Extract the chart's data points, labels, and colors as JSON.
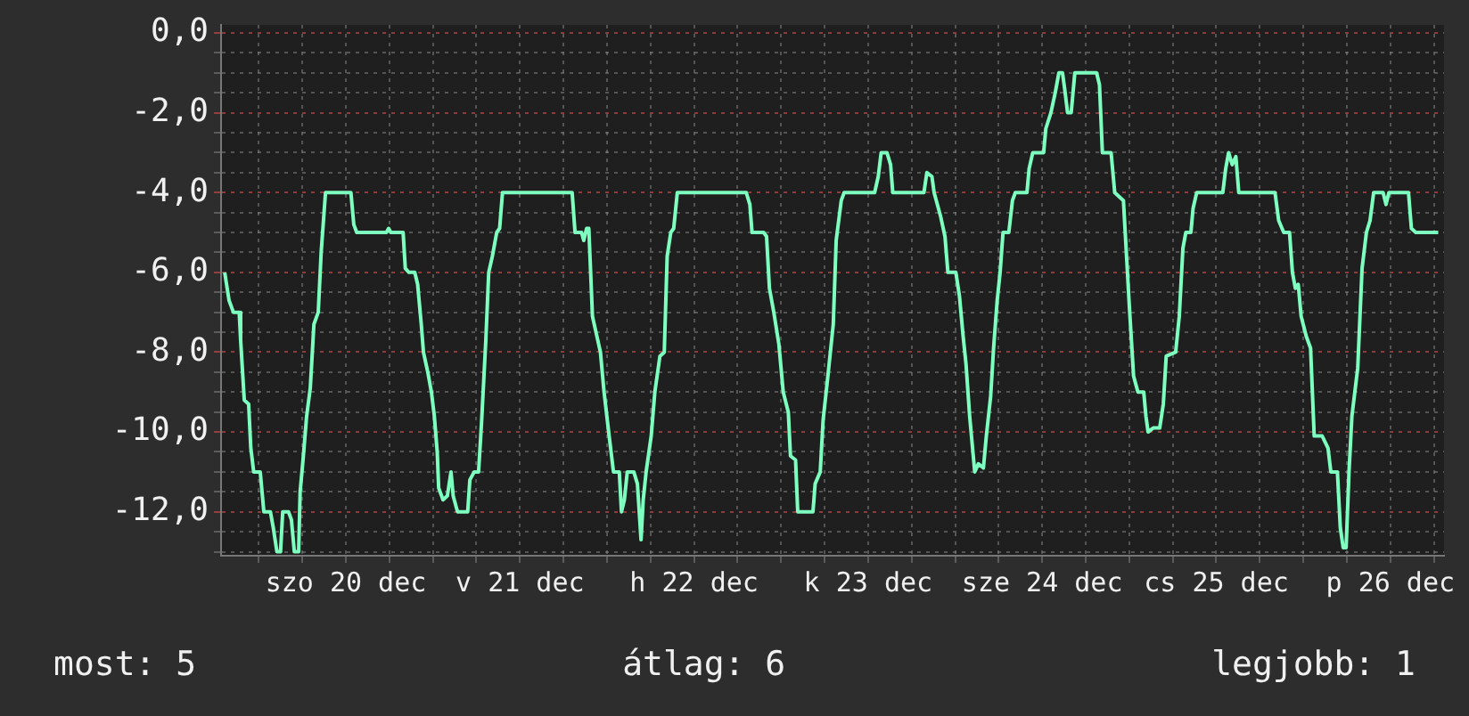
{
  "chart_data": {
    "type": "line",
    "color": "#7dffc0",
    "marker": "none",
    "line_style": "solid",
    "grid": true,
    "x": [
      "--12-19T19:18",
      "--12-19T19:54",
      "--12-19T20:30",
      "--12-19T21:18",
      "--12-19T21:30",
      "--12-19T22:00",
      "--12-19T22:36",
      "--12-19T22:54",
      "--12-19T23:18",
      "--12-20T00:12",
      "--12-20T00:42",
      "--12-20T01:36",
      "--12-20T02:00",
      "--12-20T02:30",
      "--12-20T03:00",
      "--12-20T03:18",
      "--12-20T04:06",
      "--12-20T04:30",
      "--12-20T04:54",
      "--12-20T05:30",
      "--12-20T05:42",
      "--12-20T06:06",
      "--12-20T06:36",
      "--12-20T07:06",
      "--12-20T07:36",
      "--12-20T08:12",
      "--12-20T08:36",
      "--12-20T09:12",
      "--12-20T12:42",
      "--12-20T13:06",
      "--12-20T13:30",
      "--12-20T17:36",
      "--12-20T17:54",
      "--12-20T18:12",
      "--12-20T19:54",
      "--12-20T20:12",
      "--12-20T20:42",
      "--12-20T21:30",
      "--12-20T21:54",
      "--12-20T22:24",
      "--12-20T22:42",
      "--12-20T23:18",
      "--12-20T23:48",
      "--12-21T00:12",
      "--12-21T00:36",
      "--12-21T00:48",
      "--12-21T01:24",
      "--12-21T02:00",
      "--12-21T02:30",
      "--12-21T02:48",
      "--12-21T03:24",
      "--12-21T04:48",
      "--12-21T05:06",
      "--12-21T05:42",
      "--12-21T06:18",
      "--12-21T06:42",
      "--12-21T07:18",
      "--12-21T07:42",
      "--12-21T08:12",
      "--12-21T08:48",
      "--12-21T09:12",
      "--12-21T09:36",
      "--12-21T19:12",
      "--12-21T19:36",
      "--12-21T20:30",
      "--12-21T20:48",
      "--12-21T21:12",
      "--12-21T21:30",
      "--12-21T22:00",
      "--12-21T23:06",
      "--12-21T23:36",
      "--12-22T00:18",
      "--12-22T00:54",
      "--12-22T01:42",
      "--12-22T02:00",
      "--12-22T02:24",
      "--12-22T02:48",
      "--12-22T03:42",
      "--12-22T04:12",
      "--12-22T04:42",
      "--12-22T05:00",
      "--12-22T05:24",
      "--12-22T06:06",
      "--12-22T06:36",
      "--12-22T07:18",
      "--12-22T07:54",
      "--12-22T08:18",
      "--12-22T08:48",
      "--12-22T09:12",
      "--12-22T09:42",
      "--12-22T19:12",
      "--12-22T19:42",
      "--12-22T20:00",
      "--12-22T21:36",
      "--12-22T22:00",
      "--12-22T22:24",
      "--12-22T23:00",
      "--12-22T23:42",
      "--12-23T00:18",
      "--12-23T01:00",
      "--12-23T01:18",
      "--12-23T02:00",
      "--12-23T02:18",
      "--12-23T04:24",
      "--12-23T04:42",
      "--12-23T05:24",
      "--12-23T05:48",
      "--12-23T06:24",
      "--12-23T07:12",
      "--12-23T07:36",
      "--12-23T08:18",
      "--12-23T08:42",
      "--12-23T12:54",
      "--12-23T13:24",
      "--12-23T13:48",
      "--12-23T14:36",
      "--12-23T15:06",
      "--12-23T15:24",
      "--12-23T19:42",
      "--12-23T20:06",
      "--12-23T20:48",
      "--12-23T21:06",
      "--12-23T22:00",
      "--12-23T22:36",
      "--12-23T23:00",
      "--12-24T00:06",
      "--12-24T00:36",
      "--12-24T01:06",
      "--12-24T01:30",
      "--12-24T02:00",
      "--12-24T02:42",
      "--12-24T03:12",
      "--12-24T03:54",
      "--12-24T04:18",
      "--12-24T04:54",
      "--12-24T05:18",
      "--12-24T05:48",
      "--12-24T06:12",
      "--12-24T06:36",
      "--12-24T07:24",
      "--12-24T07:54",
      "--12-24T08:18",
      "--12-24T09:54",
      "--12-24T10:12",
      "--12-24T10:42",
      "--12-24T12:12",
      "--12-24T12:30",
      "--12-24T13:12",
      "--12-24T13:48",
      "--12-24T14:18",
      "--12-24T14:48",
      "--12-24T15:06",
      "--12-24T15:30",
      "--12-24T16:00",
      "--12-24T16:30",
      "--12-24T19:30",
      "--12-24T19:54",
      "--12-24T20:18",
      "--12-24T21:30",
      "--12-24T22:00",
      "--12-24T23:12",
      "--12-24T23:36",
      "--12-25T00:00",
      "--12-25T00:36",
      "--12-25T01:12",
      "--12-25T02:00",
      "--12-25T02:18",
      "--12-25T02:36",
      "--12-25T03:18",
      "--12-25T04:12",
      "--12-25T04:42",
      "--12-25T05:06",
      "--12-25T06:24",
      "--12-25T06:54",
      "--12-25T07:24",
      "--12-25T07:48",
      "--12-25T08:30",
      "--12-25T08:48",
      "--12-25T09:18",
      "--12-25T12:54",
      "--12-25T13:18",
      "--12-25T13:42",
      "--12-25T14:12",
      "--12-25T14:42",
      "--12-25T15:06",
      "--12-25T20:06",
      "--12-25T20:36",
      "--12-25T21:18",
      "--12-25T22:06",
      "--12-25T22:30",
      "--12-25T22:54",
      "--12-25T23:18",
      "--12-25T23:42",
      "--12-26T00:24",
      "--12-26T01:00",
      "--12-26T01:30",
      "--12-26T02:36",
      "--12-26T03:24",
      "--12-26T03:48",
      "--12-26T04:42",
      "--12-26T05:06",
      "--12-26T05:30",
      "--12-26T05:54",
      "--12-26T06:18",
      "--12-26T06:42",
      "--12-26T07:30",
      "--12-26T08:06",
      "--12-26T08:42",
      "--12-26T09:12",
      "--12-26T09:42",
      "--12-26T11:00",
      "--12-26T11:24",
      "--12-26T11:48",
      "--12-26T14:30",
      "--12-26T14:54",
      "--12-26T15:30",
      "--12-26T18:36"
    ],
    "values": [
      -6,
      -6.7,
      -7,
      -7,
      -7.7,
      -9.2,
      -9.3,
      -10.4,
      -11,
      -11,
      -12,
      -12,
      -12.4,
      -13,
      -13,
      -12,
      -12,
      -12.2,
      -13,
      -13,
      -11.5,
      -10.7,
      -9.6,
      -8.9,
      -7.3,
      -7,
      -5.5,
      -4,
      -4,
      -4.8,
      -5,
      -5,
      -4.9,
      -5,
      -5,
      -5.9,
      -6,
      -6,
      -6.3,
      -7.3,
      -8,
      -8.5,
      -9,
      -9.6,
      -10.5,
      -11.4,
      -11.7,
      -11.6,
      -11,
      -11.6,
      -12,
      -12,
      -11.2,
      -11,
      -11,
      -9.8,
      -7.7,
      -6,
      -5.6,
      -5,
      -4.9,
      -4,
      -4,
      -5,
      -5,
      -5.2,
      -4.9,
      -4.9,
      -7.1,
      -8,
      -9,
      -10.1,
      -11,
      -11,
      -12,
      -11.7,
      -11,
      -11,
      -11.3,
      -12.7,
      -11.7,
      -11,
      -10.1,
      -9,
      -8.1,
      -8,
      -5.6,
      -5,
      -4.9,
      -4,
      -4,
      -4.3,
      -5,
      -5,
      -5.1,
      -6.4,
      -7,
      -7.8,
      -9,
      -9.5,
      -10.6,
      -10.7,
      -12,
      -12,
      -11.3,
      -11,
      -9.7,
      -8.7,
      -7.3,
      -5.2,
      -4.2,
      -4,
      -4,
      -3.6,
      -3,
      -3,
      -3.3,
      -4,
      -4,
      -3.5,
      -3.6,
      -4,
      -4.6,
      -5.1,
      -6,
      -6,
      -6.6,
      -7.6,
      -8.3,
      -9.6,
      -11,
      -10.8,
      -10.9,
      -10.1,
      -9.1,
      -7.9,
      -6.7,
      -6,
      -5,
      -5,
      -4.2,
      -4,
      -4,
      -3.4,
      -3,
      -3,
      -2.4,
      -2,
      -1.5,
      -1,
      -1,
      -1.4,
      -2,
      -2,
      -1,
      -1,
      -1.3,
      -3,
      -3,
      -4,
      -4.2,
      -5.5,
      -6.8,
      -8.6,
      -9,
      -9,
      -9.6,
      -10,
      -9.9,
      -9.9,
      -9.3,
      -8.1,
      -8,
      -7.1,
      -5.4,
      -5,
      -5,
      -4.4,
      -4,
      -4,
      -3.4,
      -3,
      -3.3,
      -3.1,
      -4,
      -4,
      -4.7,
      -5,
      -5,
      -6,
      -6.4,
      -6.3,
      -7.1,
      -7.6,
      -7.9,
      -10.1,
      -10.1,
      -10.4,
      -11,
      -11,
      -12.4,
      -12.9,
      -12.9,
      -11,
      -9.6,
      -8.4,
      -5.9,
      -5,
      -4.7,
      -4,
      -4,
      -4.3,
      -4,
      -4,
      -4.9,
      -5,
      -5
    ],
    "xlim": [
      "--12-19T18:48",
      "--12-26T19:24"
    ],
    "xticks": [
      {
        "value": "--12-20T00:00",
        "label": null
      },
      {
        "value": "--12-20T06:00",
        "label": null
      },
      {
        "value": "--12-20T12:00",
        "label": "szo 20 dec"
      },
      {
        "value": "--12-20T18:00",
        "label": null
      },
      {
        "value": "--12-21T00:00",
        "label": null
      },
      {
        "value": "--12-21T06:00",
        "label": null
      },
      {
        "value": "--12-21T12:00",
        "label": "v 21 dec"
      },
      {
        "value": "--12-21T18:00",
        "label": null
      },
      {
        "value": "--12-22T00:00",
        "label": null
      },
      {
        "value": "--12-22T06:00",
        "label": null
      },
      {
        "value": "--12-22T12:00",
        "label": "h 22 dec"
      },
      {
        "value": "--12-22T18:00",
        "label": null
      },
      {
        "value": "--12-23T00:00",
        "label": null
      },
      {
        "value": "--12-23T06:00",
        "label": null
      },
      {
        "value": "--12-23T12:00",
        "label": "k 23 dec"
      },
      {
        "value": "--12-23T18:00",
        "label": null
      },
      {
        "value": "--12-24T00:00",
        "label": null
      },
      {
        "value": "--12-24T06:00",
        "label": null
      },
      {
        "value": "--12-24T12:00",
        "label": "sze 24 dec"
      },
      {
        "value": "--12-24T18:00",
        "label": null
      },
      {
        "value": "--12-25T00:00",
        "label": null
      },
      {
        "value": "--12-25T06:00",
        "label": null
      },
      {
        "value": "--12-25T12:00",
        "label": "cs 25 dec"
      },
      {
        "value": "--12-25T18:00",
        "label": null
      },
      {
        "value": "--12-26T00:00",
        "label": null
      },
      {
        "value": "--12-26T06:00",
        "label": null
      },
      {
        "value": "--12-26T12:00",
        "label": "p 26 dec"
      },
      {
        "value": "--12-26T18:00",
        "label": null
      }
    ],
    "ylim": [
      -13.1,
      0.2
    ],
    "yticks": [
      {
        "value": 0,
        "label": "0,0"
      },
      {
        "value": -0.5,
        "label": null
      },
      {
        "value": -1,
        "label": null
      },
      {
        "value": -1.5,
        "label": null
      },
      {
        "value": -2,
        "label": "-2,0"
      },
      {
        "value": -2.5,
        "label": null
      },
      {
        "value": -3,
        "label": null
      },
      {
        "value": -3.5,
        "label": null
      },
      {
        "value": -4,
        "label": "-4,0"
      },
      {
        "value": -4.5,
        "label": null
      },
      {
        "value": -5,
        "label": null
      },
      {
        "value": -5.5,
        "label": null
      },
      {
        "value": -6,
        "label": "-6,0"
      },
      {
        "value": -6.5,
        "label": null
      },
      {
        "value": -7,
        "label": null
      },
      {
        "value": -7.5,
        "label": null
      },
      {
        "value": -8,
        "label": "-8,0"
      },
      {
        "value": -8.5,
        "label": null
      },
      {
        "value": -9,
        "label": null
      },
      {
        "value": -9.5,
        "label": null
      },
      {
        "value": -10,
        "label": "-10,0"
      },
      {
        "value": -10.5,
        "label": null
      },
      {
        "value": -11,
        "label": null
      },
      {
        "value": -11.5,
        "label": null
      },
      {
        "value": -12,
        "label": "-12,0"
      },
      {
        "value": -12.5,
        "label": null
      },
      {
        "value": -13,
        "label": null
      }
    ],
    "annotations": [
      "most: 5",
      "átlag: 6",
      "legjobb: 1"
    ]
  }
}
